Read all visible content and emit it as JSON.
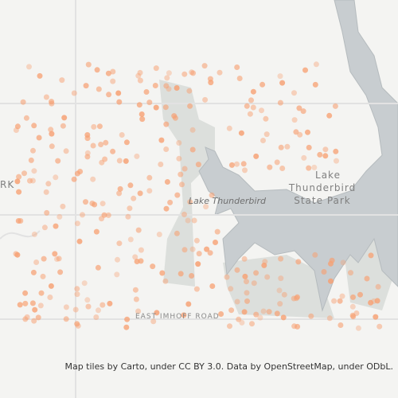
{
  "map": {
    "labels": {
      "lake": "Lake Thunderbird",
      "park_line1": "Lake",
      "park_line2": "Thunderbird",
      "park_line3": "State Park",
      "road": "EAST IMHOFF ROAD",
      "edge": "RK"
    },
    "attribution": "Map tiles by Carto, under CC BY 3.0. Data by OpenStreetMap, under ODbL."
  }
}
